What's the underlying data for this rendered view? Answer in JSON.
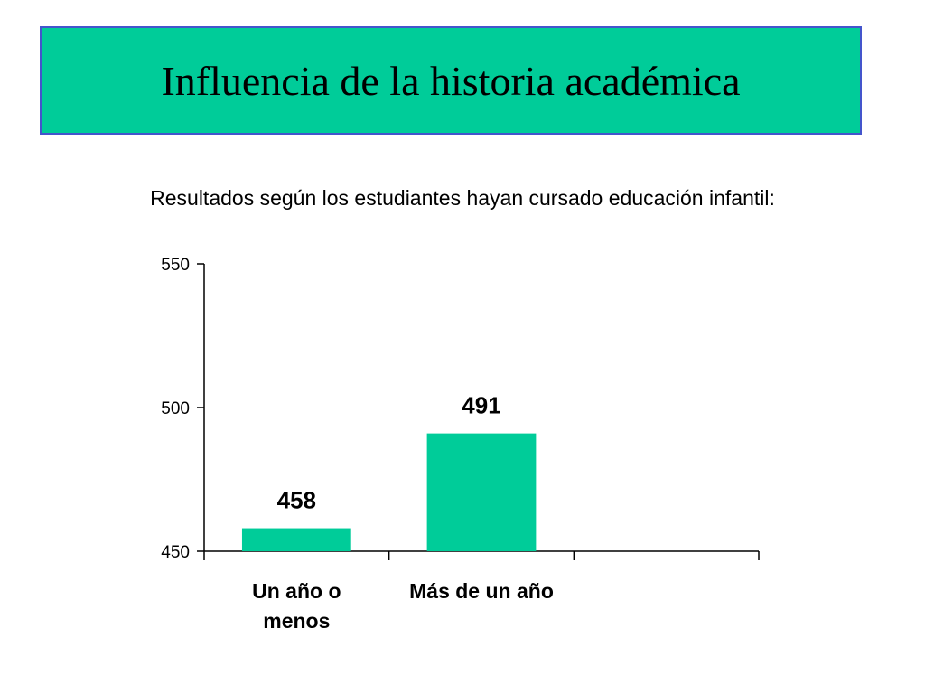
{
  "slide": {
    "title": "Influencia de la historia académica",
    "subtitle": "Resultados según los estudiantes hayan cursado educación infantil:"
  },
  "colors": {
    "title_bg": "#00cc99",
    "title_border": "#4455cc",
    "bar": "#00cc99",
    "axis": "#000000"
  },
  "chart_data": {
    "type": "bar",
    "categories": [
      "Un año o menos",
      "Más de un año",
      ""
    ],
    "category_label_lines": [
      [
        "Un año o",
        "menos"
      ],
      [
        "Más de un año"
      ],
      []
    ],
    "values": [
      458,
      491,
      null
    ],
    "data_labels": [
      "458",
      "491",
      ""
    ],
    "ylim": [
      450,
      550
    ],
    "yticks": [
      450,
      500,
      550
    ],
    "xlabel": "",
    "ylabel": "",
    "grid": false,
    "legend": "none"
  }
}
